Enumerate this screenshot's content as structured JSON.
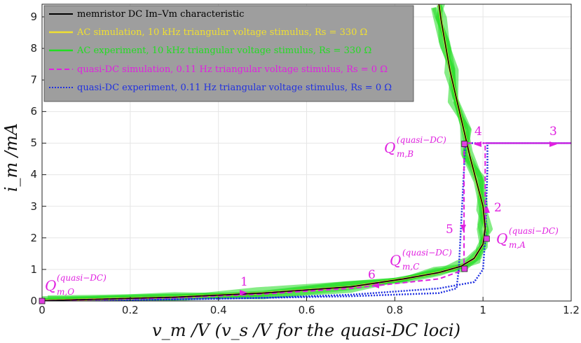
{
  "chart_data": {
    "type": "line",
    "xlabel": "v_m /V (v_s /V for the quasi-DC loci)",
    "ylabel": "i_m /mA",
    "xlim": [
      0,
      1.2
    ],
    "ylim": [
      0,
      9.4
    ],
    "x_ticks": [
      "0",
      "0.2",
      "0.4",
      "0.6",
      "0.8",
      "1",
      "1.2"
    ],
    "y_ticks": [
      "0",
      "1",
      "2",
      "3",
      "4",
      "5",
      "6",
      "7",
      "8",
      "9"
    ],
    "grid": true,
    "legend_position": "top-left",
    "legend_background": "#9e9e9e",
    "series": [
      {
        "name": "memristor DC I_m–V_m characteristic",
        "legend_label": "memristor DC Im–Vm characteristic",
        "color": "#000000",
        "style": "solid",
        "x": [
          0,
          0.3,
          0.5,
          0.7,
          0.82,
          0.9,
          0.95,
          0.98,
          1.0,
          1.005,
          1.0,
          0.985,
          0.97,
          0.955,
          0.94,
          0.925,
          0.915,
          0.905,
          0.9
        ],
        "y": [
          0.01,
          0.12,
          0.25,
          0.45,
          0.7,
          0.9,
          1.1,
          1.35,
          1.8,
          2.3,
          3.0,
          3.8,
          4.6,
          5.5,
          6.4,
          7.3,
          8.1,
          8.9,
          9.4
        ]
      },
      {
        "name": "AC simulation, 10 kHz triangular voltage stimulus, R_s = 330 Ω",
        "legend_label": "AC simulation, 10 kHz triangular voltage stimulus, Rs = 330 Ω",
        "color": "#f0e030",
        "style": "solid",
        "x": [
          0,
          0.3,
          0.5,
          0.7,
          0.82,
          0.9,
          0.95,
          0.98,
          1.0,
          1.005,
          1.0,
          0.985,
          0.97,
          0.955,
          0.94,
          0.925,
          0.915,
          0.905,
          0.9
        ],
        "y": [
          0.01,
          0.12,
          0.25,
          0.45,
          0.7,
          0.9,
          1.1,
          1.35,
          1.8,
          2.3,
          3.0,
          3.8,
          4.6,
          5.5,
          6.4,
          7.3,
          8.1,
          8.9,
          9.4
        ]
      },
      {
        "name": "AC experiment, 10 kHz triangular voltage stimulus, R_s = 330 Ω",
        "legend_label": "AC experiment, 10 kHz triangular voltage stimulus, Rs = 330 Ω",
        "color": "#22dd22",
        "style": "solid",
        "x": [
          0,
          0.3,
          0.5,
          0.7,
          0.82,
          0.9,
          0.95,
          0.98,
          1.0,
          1.005,
          1.0,
          0.985,
          0.97,
          0.955,
          0.94,
          0.925,
          0.915,
          0.905,
          0.9
        ],
        "y": [
          0.01,
          0.12,
          0.25,
          0.45,
          0.7,
          0.9,
          1.1,
          1.35,
          1.8,
          2.3,
          3.0,
          3.8,
          4.6,
          5.5,
          6.4,
          7.3,
          8.1,
          8.9,
          9.4
        ]
      },
      {
        "name": "quasi-DC simulation, 0.11 Hz triangular voltage stimulus, R_s = 0 Ω",
        "legend_label": "quasi-DC simulation, 0.11 Hz triangular voltage stimulus, Rs = 0 Ω",
        "color": "#e020e0",
        "style": "dashed",
        "x": [
          0,
          0.3,
          0.5,
          0.7,
          0.82,
          0.9,
          0.95,
          0.98,
          1.0,
          1.005,
          1.005,
          1.2,
          0.957,
          0.957,
          0.95,
          0.9,
          0.7,
          0.5,
          0.3,
          0
        ],
        "y": [
          0.01,
          0.12,
          0.25,
          0.45,
          0.7,
          0.9,
          1.1,
          1.35,
          1.8,
          2.3,
          5.0,
          5.0,
          5.0,
          1.0,
          0.95,
          0.7,
          0.4,
          0.22,
          0.1,
          0.01
        ]
      },
      {
        "name": "quasi-DC experiment, 0.11 Hz triangular voltage stimulus, R_s = 0 Ω",
        "legend_label": "quasi-DC experiment, 0.11 Hz triangular voltage stimulus, Rs = 0 Ω",
        "color": "#2030e0",
        "style": "dotted",
        "x": [
          0,
          0.3,
          0.5,
          0.7,
          0.9,
          0.98,
          1.0,
          1.005,
          1.01,
          1.01,
          1.2,
          0.96,
          0.945,
          0.94,
          0.9,
          0.7,
          0.5,
          0.3,
          0
        ],
        "y": [
          0.01,
          0.05,
          0.1,
          0.2,
          0.4,
          0.6,
          1.0,
          2.0,
          4.2,
          5.0,
          5.0,
          5.0,
          1.0,
          0.4,
          0.25,
          0.15,
          0.1,
          0.05,
          0.01
        ]
      }
    ],
    "markers": [
      {
        "label": "Q_m,O^(quasi−DC)",
        "x": 0,
        "y": 0
      },
      {
        "label": "Q_m,A^(quasi−DC)",
        "x": 1.007,
        "y": 1.95
      },
      {
        "label": "Q_m,B^(quasi−DC)",
        "x": 0.957,
        "y": 5.0
      },
      {
        "label": "Q_m,C^(quasi−DC)",
        "x": 0.957,
        "y": 1.0
      }
    ],
    "marker_labels": {
      "O": {
        "main": "Q",
        "sup": "(quasi−DC)",
        "sub": "m,O"
      },
      "A": {
        "main": "Q",
        "sup": "(quasi−DC)",
        "sub": "m,A"
      },
      "B": {
        "main": "Q",
        "sup": "(quasi−DC)",
        "sub": "m,B"
      },
      "C": {
        "main": "Q",
        "sup": "(quasi−DC)",
        "sub": "m,C"
      }
    },
    "arrow_annotations": [
      "1",
      "2",
      "3",
      "4",
      "5",
      "6"
    ]
  }
}
